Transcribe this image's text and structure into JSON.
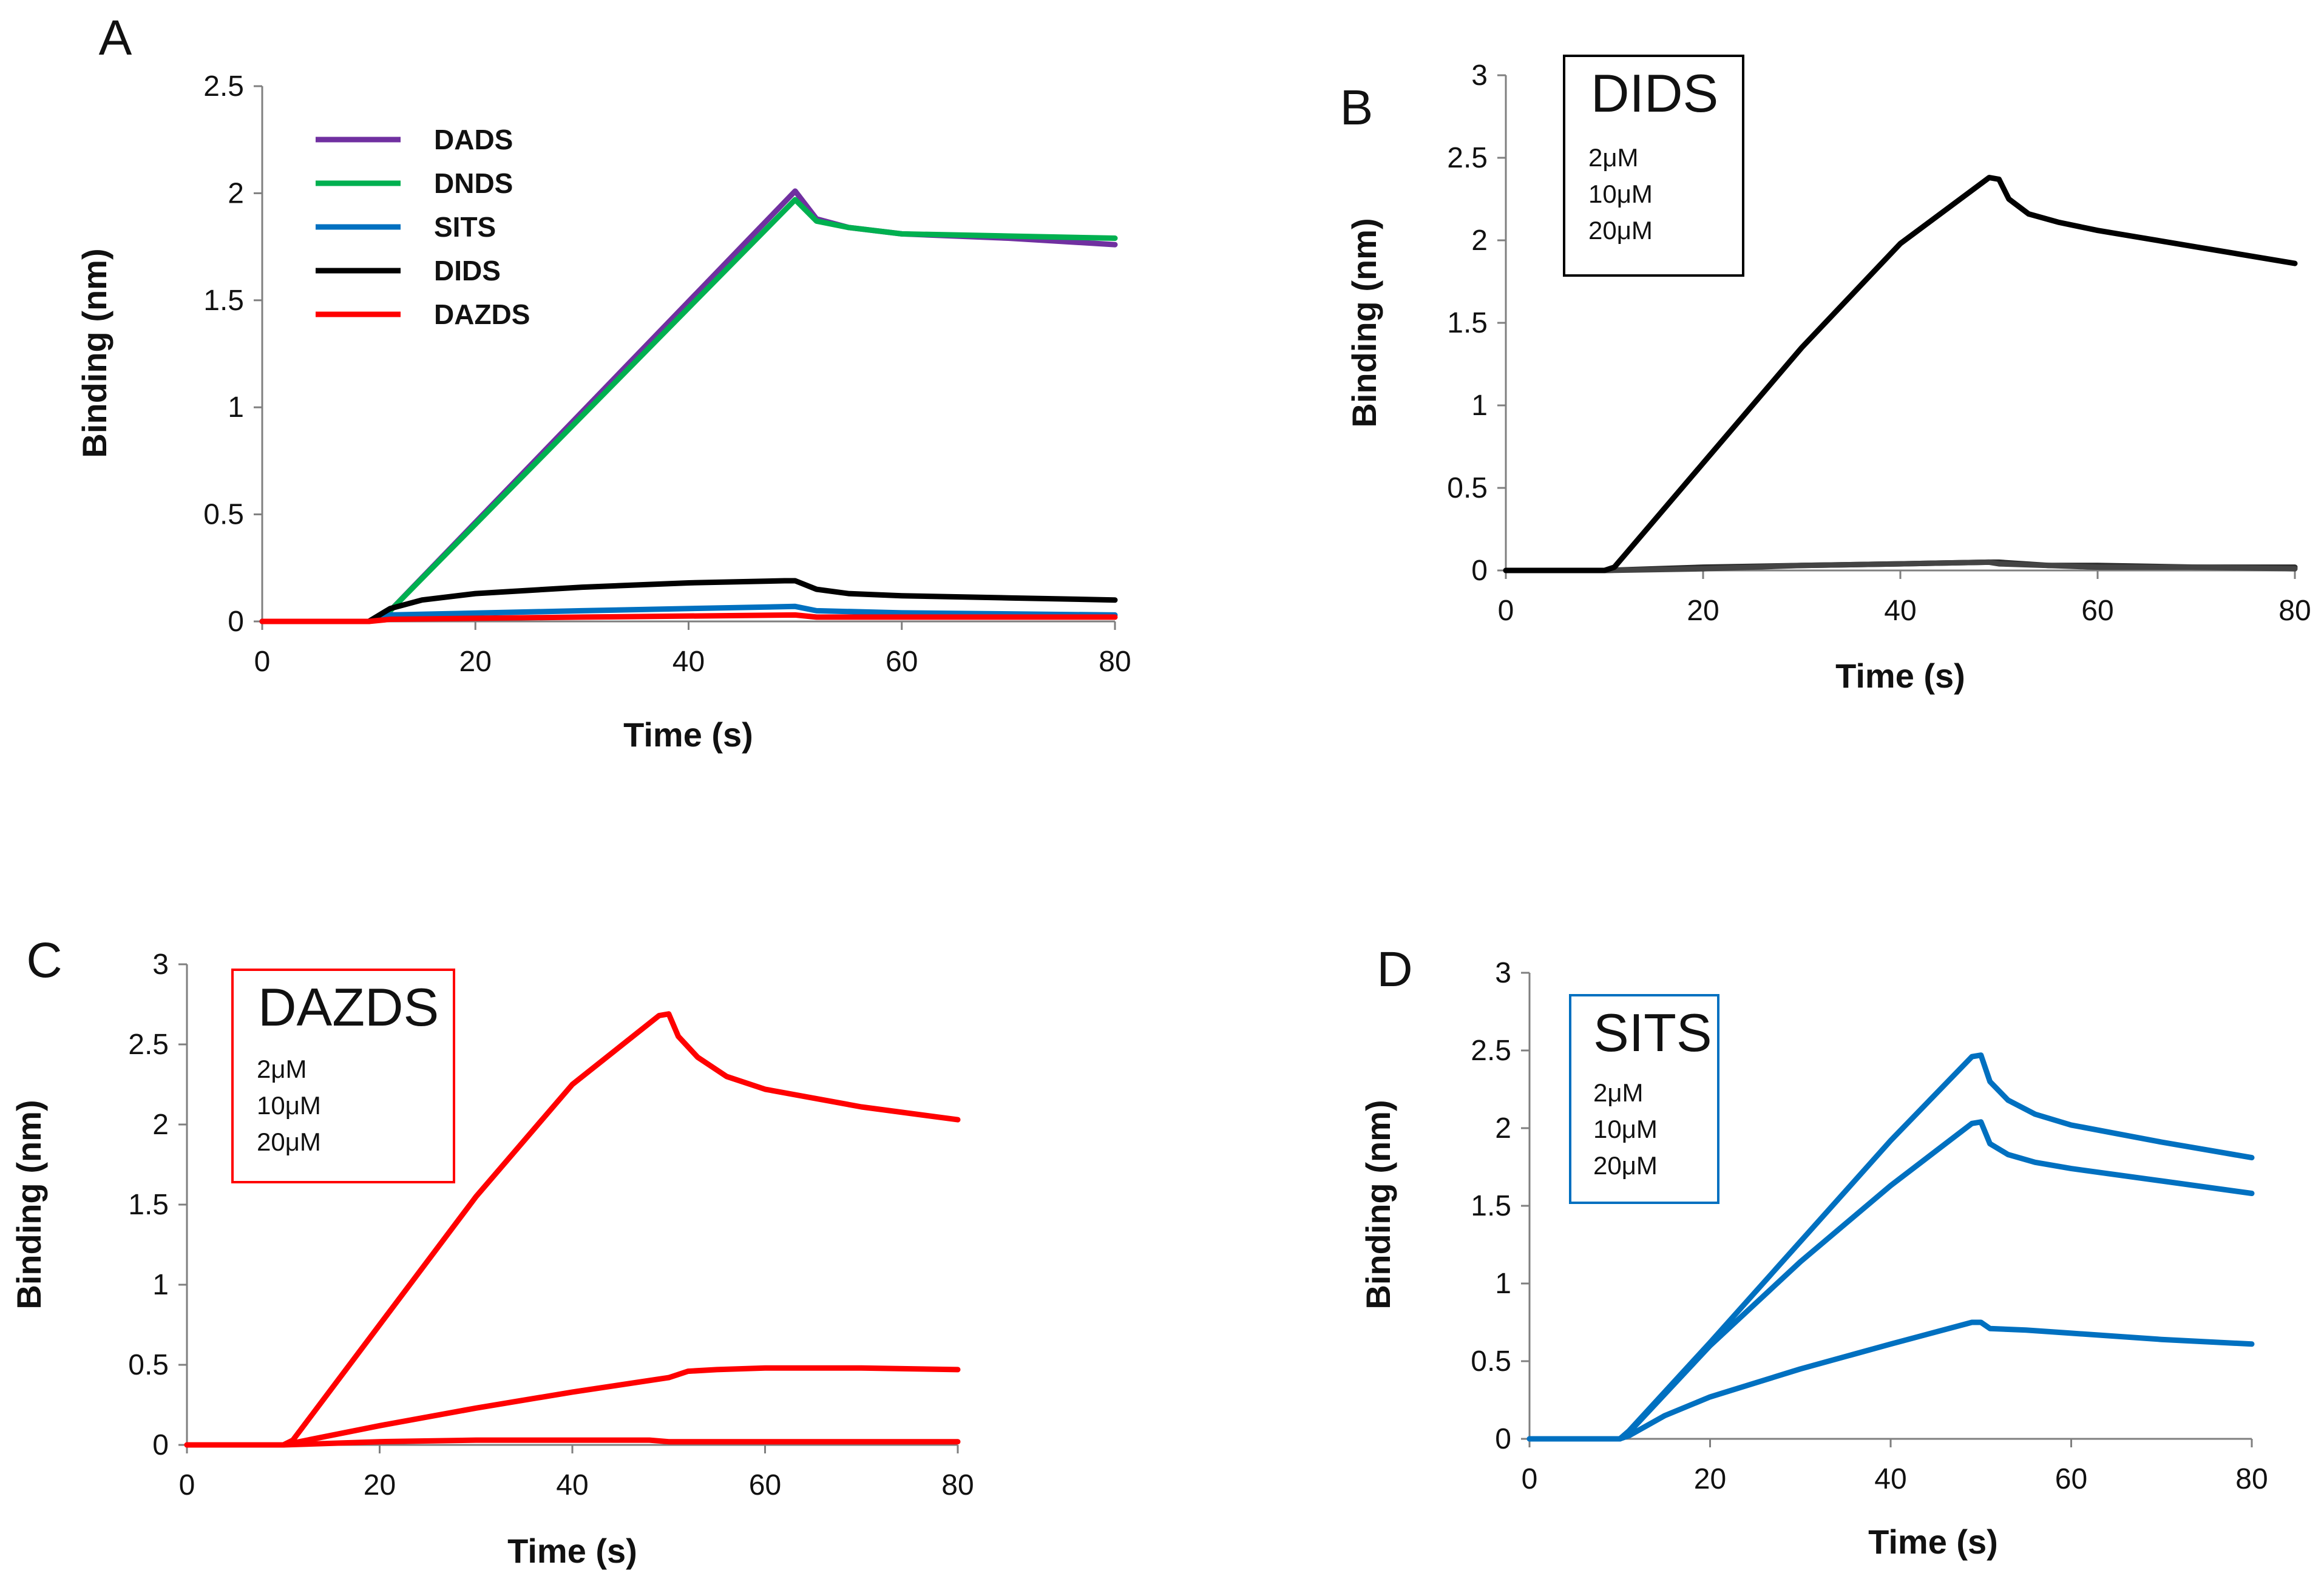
{
  "chart_data": [
    {
      "panel": "A",
      "type": "line",
      "title": "",
      "xlabel": "Time (s)",
      "ylabel": "Binding (nm)",
      "xlim": [
        0,
        80
      ],
      "ylim": [
        0,
        2.5
      ],
      "xticks": [
        0,
        20,
        40,
        60,
        80
      ],
      "yticks": [
        0,
        0.5,
        1,
        1.5,
        2,
        2.5
      ],
      "ytick_labels": [
        "0",
        "0.5",
        "1",
        "1.5",
        "2",
        "2.5"
      ],
      "legend": {
        "placement": "top-left",
        "items": [
          "DADS",
          "DNDS",
          "SITS",
          "DIDS",
          "DAZDS"
        ]
      },
      "series": [
        {
          "name": "DADS",
          "color": "#7030a0",
          "x": [
            0,
            10,
            12,
            50,
            52,
            55,
            60,
            70,
            80
          ],
          "y": [
            0,
            0,
            0.05,
            2.01,
            1.88,
            1.84,
            1.81,
            1.79,
            1.76
          ]
        },
        {
          "name": "DNDS",
          "color": "#00b050",
          "x": [
            0,
            10,
            12,
            50,
            52,
            55,
            60,
            70,
            80
          ],
          "y": [
            0,
            0,
            0.05,
            1.97,
            1.87,
            1.84,
            1.81,
            1.8,
            1.79
          ]
        },
        {
          "name": "SITS",
          "color": "#0070c0",
          "x": [
            0,
            10,
            12,
            30,
            50,
            52,
            60,
            80
          ],
          "y": [
            0,
            0,
            0.03,
            0.05,
            0.07,
            0.05,
            0.04,
            0.03
          ]
        },
        {
          "name": "DIDS",
          "color": "#000000",
          "x": [
            0,
            10,
            12,
            15,
            20,
            30,
            40,
            49,
            50,
            52,
            55,
            60,
            70,
            80
          ],
          "y": [
            0,
            0,
            0.06,
            0.1,
            0.13,
            0.16,
            0.18,
            0.19,
            0.19,
            0.15,
            0.13,
            0.12,
            0.11,
            0.1
          ]
        },
        {
          "name": "DAZDS",
          "color": "#ff0000",
          "x": [
            0,
            10,
            12,
            30,
            50,
            52,
            60,
            80
          ],
          "y": [
            0,
            0,
            0.01,
            0.02,
            0.03,
            0.02,
            0.02,
            0.02
          ]
        }
      ]
    },
    {
      "panel": "B",
      "type": "line",
      "title": "",
      "xlabel": "Time (s)",
      "ylabel": "Binding (nm)",
      "xlim": [
        0,
        80
      ],
      "ylim": [
        0,
        3
      ],
      "xticks": [
        0,
        20,
        40,
        60,
        80
      ],
      "yticks": [
        0,
        0.5,
        1,
        1.5,
        2,
        2.5,
        3
      ],
      "ytick_labels": [
        "0",
        "0.5",
        "1",
        "1.5",
        "2",
        "2.5",
        "3"
      ],
      "legend_box": {
        "title": "DIDS",
        "items": [
          "2μM",
          "10μM",
          "20μM"
        ],
        "border_color": "#000000"
      },
      "series": [
        {
          "name": "2μM",
          "color": "#2b2b2b",
          "x": [
            0,
            10,
            20,
            30,
            40,
            49,
            50,
            55,
            60,
            70,
            80
          ],
          "y": [
            0,
            0,
            0.02,
            0.03,
            0.04,
            0.05,
            0.05,
            0.03,
            0.03,
            0.02,
            0.02
          ]
        },
        {
          "name": "10μM",
          "color": "#444444",
          "x": [
            0,
            10,
            20,
            30,
            40,
            49,
            50,
            55,
            60,
            70,
            80
          ],
          "y": [
            0,
            0,
            0.01,
            0.03,
            0.04,
            0.05,
            0.04,
            0.03,
            0.02,
            0.02,
            0.01
          ]
        },
        {
          "name": "20μM",
          "color": "#000000",
          "x": [
            0,
            10,
            11,
            20,
            30,
            40,
            49,
            50,
            51,
            53,
            56,
            60,
            70,
            80
          ],
          "y": [
            0,
            0,
            0.02,
            0.65,
            1.35,
            1.98,
            2.38,
            2.37,
            2.25,
            2.16,
            2.11,
            2.06,
            1.96,
            1.86
          ]
        }
      ]
    },
    {
      "panel": "C",
      "type": "line",
      "title": "",
      "xlabel": "Time (s)",
      "ylabel": "Binding (nm)",
      "xlim": [
        0,
        80
      ],
      "ylim": [
        0,
        3
      ],
      "xticks": [
        0,
        20,
        40,
        60,
        80
      ],
      "yticks": [
        0,
        0.5,
        1,
        1.5,
        2,
        2.5,
        3
      ],
      "ytick_labels": [
        "0",
        "0.5",
        "1",
        "1.5",
        "2",
        "2.5",
        "3"
      ],
      "legend_box": {
        "title": "DAZDS",
        "items": [
          "2μM",
          "10μM",
          "20μM"
        ],
        "border_color": "#ff0000"
      },
      "series": [
        {
          "name": "2μM",
          "color": "#ff0000",
          "x": [
            0,
            10,
            20,
            30,
            40,
            48,
            50,
            55,
            60,
            70,
            80
          ],
          "y": [
            0,
            0,
            0.02,
            0.03,
            0.03,
            0.03,
            0.02,
            0.02,
            0.02,
            0.02,
            0.02
          ]
        },
        {
          "name": "10μM",
          "color": "#ff0000",
          "x": [
            0,
            10,
            20,
            30,
            40,
            50,
            52,
            55,
            60,
            70,
            80
          ],
          "y": [
            0,
            0,
            0.12,
            0.23,
            0.33,
            0.42,
            0.46,
            0.47,
            0.48,
            0.48,
            0.47
          ]
        },
        {
          "name": "20μM",
          "color": "#ff0000",
          "x": [
            0,
            10,
            11,
            20,
            30,
            40,
            49,
            50,
            51,
            53,
            56,
            60,
            70,
            80
          ],
          "y": [
            0,
            0,
            0.03,
            0.75,
            1.55,
            2.25,
            2.68,
            2.69,
            2.55,
            2.42,
            2.3,
            2.22,
            2.11,
            2.03
          ]
        }
      ]
    },
    {
      "panel": "D",
      "type": "line",
      "title": "",
      "xlabel": "Time (s)",
      "ylabel": "Binding (nm)",
      "xlim": [
        0,
        80
      ],
      "ylim": [
        0,
        3
      ],
      "xticks": [
        0,
        20,
        40,
        60,
        80
      ],
      "yticks": [
        0,
        0.5,
        1,
        1.5,
        2,
        2.5,
        3
      ],
      "ytick_labels": [
        "0",
        "0.5",
        "1",
        "1.5",
        "2",
        "2.5",
        "3"
      ],
      "legend_box": {
        "title": "SITS",
        "items": [
          "2μM",
          "10μM",
          "20μM"
        ],
        "border_color": "#0070c0"
      },
      "series": [
        {
          "name": "2μM",
          "color": "#0070c0",
          "x": [
            0,
            10,
            11,
            15,
            20,
            30,
            40,
            49,
            50,
            51,
            55,
            60,
            70,
            80
          ],
          "y": [
            0,
            0,
            0.02,
            0.15,
            0.27,
            0.45,
            0.61,
            0.75,
            0.75,
            0.71,
            0.7,
            0.68,
            0.64,
            0.61
          ]
        },
        {
          "name": "10μM",
          "color": "#0070c0",
          "x": [
            0,
            10,
            11,
            20,
            30,
            40,
            49,
            50,
            51,
            53,
            56,
            60,
            70,
            80
          ],
          "y": [
            0,
            0,
            0.04,
            0.6,
            1.14,
            1.63,
            2.03,
            2.04,
            1.9,
            1.83,
            1.78,
            1.74,
            1.66,
            1.58
          ]
        },
        {
          "name": "20μM",
          "color": "#0070c0",
          "x": [
            0,
            10,
            11,
            20,
            30,
            40,
            49,
            50,
            51,
            53,
            56,
            60,
            70,
            80
          ],
          "y": [
            0,
            0,
            0.05,
            0.62,
            1.27,
            1.92,
            2.46,
            2.47,
            2.3,
            2.18,
            2.09,
            2.02,
            1.91,
            1.81
          ]
        }
      ]
    }
  ]
}
